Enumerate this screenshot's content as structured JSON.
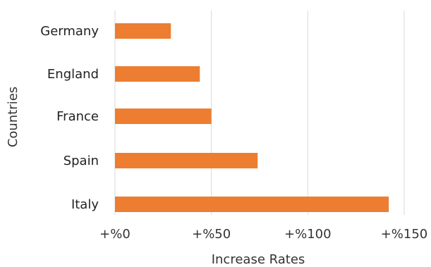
{
  "chart_data": {
    "type": "bar",
    "orientation": "horizontal",
    "categories": [
      "Germany",
      "England",
      "France",
      "Spain",
      "Italy"
    ],
    "values": [
      29,
      44,
      50,
      74,
      142
    ],
    "xlabel": "Increase Rates",
    "ylabel": "Countries",
    "xlim": [
      0,
      150
    ],
    "xticks": [
      0,
      50,
      100,
      150
    ],
    "xtick_labels": [
      "+%0",
      "+%50",
      "+%100",
      "+%150"
    ],
    "grid": "vertical",
    "bar_color": "#ED7D31",
    "gridline_color": "#D9D9D9"
  }
}
